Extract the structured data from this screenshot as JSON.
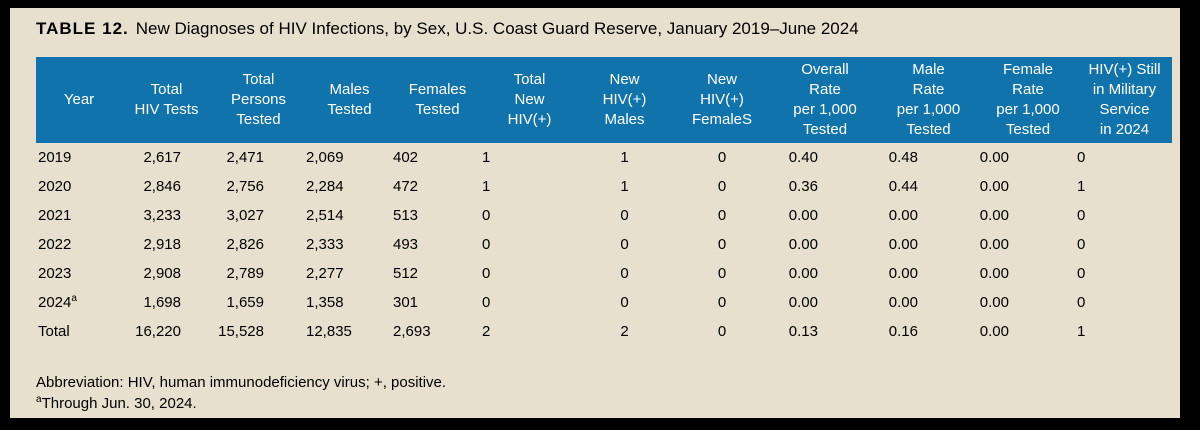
{
  "title": {
    "label": "TABLE 12.",
    "text": "New Diagnoses of HIV Infections, by Sex, U.S. Coast Guard Reserve, January 2019–June 2024"
  },
  "colors": {
    "header_background": "#1173ab",
    "header_text": "#ffffff",
    "page_background": "#e8e0ce",
    "frame_border": "#000000",
    "body_text": "#000000"
  },
  "table": {
    "columns": [
      "Year",
      "Total\nHIV Tests",
      "Total\nPersons\nTested",
      "Males\nTested",
      "Females\nTested",
      "Total\nNew\nHIV(+)",
      "New\nHIV(+)\nMales",
      "New\nHIV(+)\nFemaleS",
      "Overall\nRate\nper 1,000\nTested",
      "Male\nRate\nper 1,000\nTested",
      "Female\nRate\nper 1,000\nTested",
      "HIV(+) Still\nin Military\nService\nin 2024"
    ],
    "rows": [
      {
        "year": "2019",
        "year_sup": "",
        "values": [
          "2,617",
          "2,471",
          "2,069",
          "402",
          "1",
          "1",
          "0",
          "0.40",
          "0.48",
          "0.00",
          "0"
        ]
      },
      {
        "year": "2020",
        "year_sup": "",
        "values": [
          "2,846",
          "2,756",
          "2,284",
          "472",
          "1",
          "1",
          "0",
          "0.36",
          "0.44",
          "0.00",
          "1"
        ]
      },
      {
        "year": "2021",
        "year_sup": "",
        "values": [
          "3,233",
          "3,027",
          "2,514",
          "513",
          "0",
          "0",
          "0",
          "0.00",
          "0.00",
          "0.00",
          "0"
        ]
      },
      {
        "year": "2022",
        "year_sup": "",
        "values": [
          "2,918",
          "2,826",
          "2,333",
          "493",
          "0",
          "0",
          "0",
          "0.00",
          "0.00",
          "0.00",
          "0"
        ]
      },
      {
        "year": "2023",
        "year_sup": "",
        "values": [
          "2,908",
          "2,789",
          "2,277",
          "512",
          "0",
          "0",
          "0",
          "0.00",
          "0.00",
          "0.00",
          "0"
        ]
      },
      {
        "year": "2024",
        "year_sup": "a",
        "values": [
          "1,698",
          "1,659",
          "1,358",
          "301",
          "0",
          "0",
          "0",
          "0.00",
          "0.00",
          "0.00",
          "0"
        ]
      },
      {
        "year": "Total",
        "year_sup": "",
        "values": [
          "16,220",
          "15,528",
          "12,835",
          "2,693",
          "2",
          "2",
          "0",
          "0.13",
          "0.16",
          "0.00",
          "1"
        ]
      }
    ]
  },
  "footnotes": [
    {
      "sup": "",
      "text": "Abbreviation: HIV, human immunodeficiency virus; +, positive."
    },
    {
      "sup": "a",
      "text": "Through Jun. 30, 2024."
    }
  ]
}
